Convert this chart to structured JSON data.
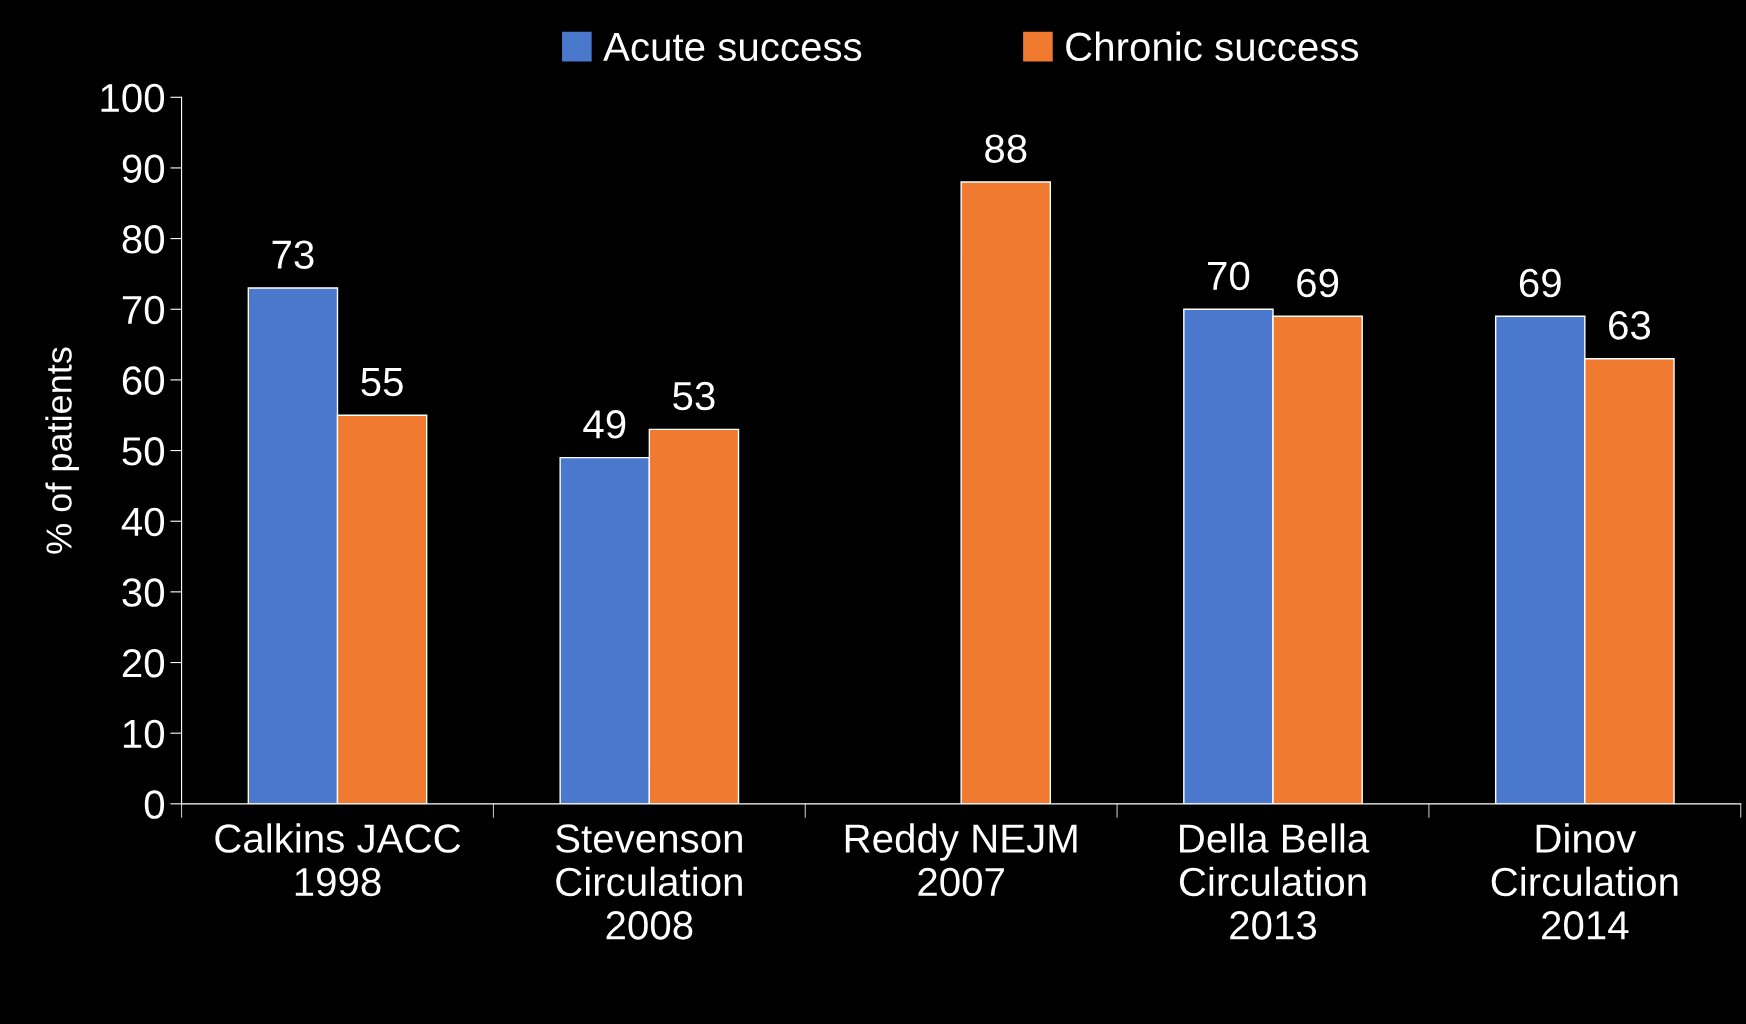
{
  "chart_data": {
    "type": "bar",
    "ylabel": "% of patients",
    "categories": [
      "Calkins JACC\n1998",
      "Stevenson\nCirculation\n2008",
      "Reddy NEJM\n2007",
      "Della Bella\nCirculation\n2013",
      "Dinov\nCirculation\n2014"
    ],
    "series": [
      {
        "name": "Acute success",
        "color": "#4a78cc",
        "values": [
          73,
          49,
          null,
          70,
          69
        ]
      },
      {
        "name": "Chronic success",
        "color": "#f07a30",
        "values": [
          55,
          53,
          88,
          69,
          63
        ]
      }
    ],
    "ylim": [
      0,
      100
    ],
    "yticks": [
      0,
      10,
      20,
      30,
      40,
      50,
      60,
      70,
      80,
      90,
      100
    ],
    "data_labels": true,
    "grid": false,
    "legend": "top"
  }
}
